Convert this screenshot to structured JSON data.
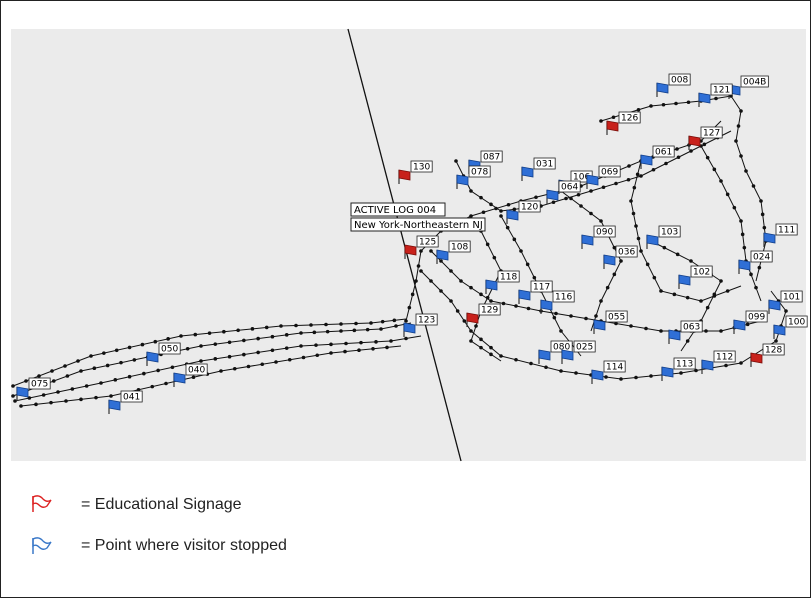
{
  "tooltip": {
    "title": "ACTIVE LOG 004",
    "subtitle": "New York-Northeastern NJ"
  },
  "signage": [
    "130",
    "126",
    "127",
    "125",
    "129",
    "128"
  ],
  "stops": [
    "008",
    "004B",
    "121",
    "087",
    "078",
    "031",
    "106",
    "069",
    "061",
    "120",
    "064",
    "090",
    "036",
    "103",
    "111",
    "024",
    "108",
    "118",
    "117",
    "116",
    "123",
    "050",
    "040",
    "075",
    "041",
    "080",
    "025",
    "114",
    "113",
    "112",
    "063",
    "099",
    "101",
    "100",
    "055",
    "102"
  ],
  "legend": [
    "= Educational Signage",
    "= Point where visitor stopped"
  ]
}
